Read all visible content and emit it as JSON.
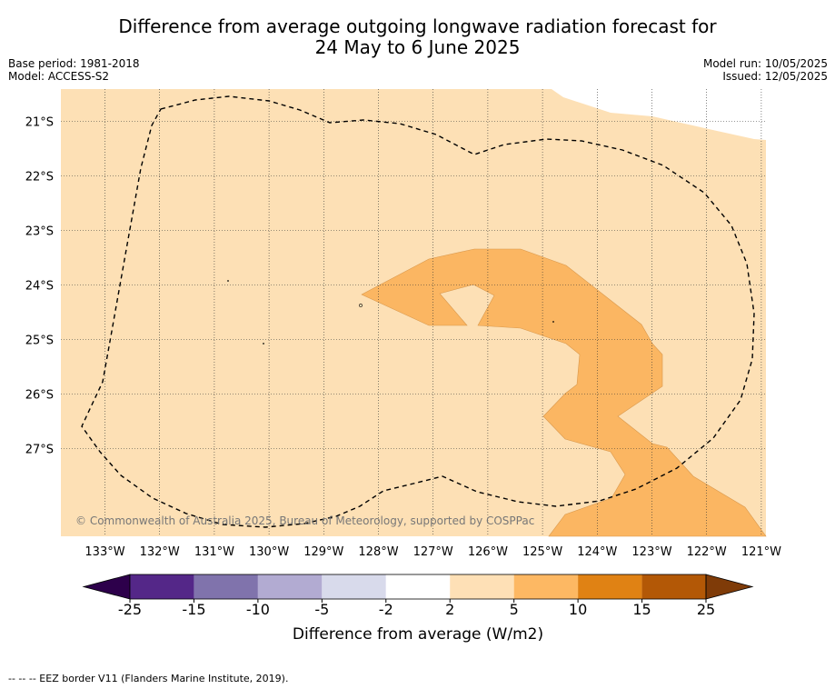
{
  "title_line1": "Difference from average outgoing longwave radiation forecast for",
  "title_line2": "24 May to 6 June 2025",
  "meta_left": {
    "base_period": "Base period: 1981-2018",
    "model": "Model: ACCESS-S2"
  },
  "meta_right": {
    "model_run": "Model run: 10/05/2025",
    "issued": "Issued: 12/05/2025"
  },
  "copyright": "© Commonwealth of Australia 2025, Bureau of Meteorology, supported by COSPPac",
  "footer": "--  --  -- EEZ border V11 (Flanders Marine Institute, 2019).",
  "map": {
    "lon_labels": [
      "133°W",
      "132°W",
      "131°W",
      "130°W",
      "129°W",
      "128°W",
      "127°W",
      "126°W",
      "125°W",
      "124°W",
      "123°W",
      "122°W",
      "121°W"
    ],
    "lat_labels": [
      "21°S",
      "22°S",
      "23°S",
      "24°S",
      "25°S",
      "26°S",
      "27°S"
    ],
    "base_fill_color": "#fde0b5",
    "anomaly_fill_color": "#fbb662"
  },
  "colorbar": {
    "tick_labels": [
      "-25",
      "-15",
      "-10",
      "-5",
      "-2",
      "2",
      "5",
      "10",
      "15",
      "25"
    ],
    "label": "Difference from average (W/m2)",
    "colors": [
      "#2d004b",
      "#542788",
      "#8073ac",
      "#b2abd2",
      "#d8daeb",
      "#ffffff",
      "#fee0b6",
      "#fdb863",
      "#e08214",
      "#b35806",
      "#7f3b08"
    ]
  }
}
